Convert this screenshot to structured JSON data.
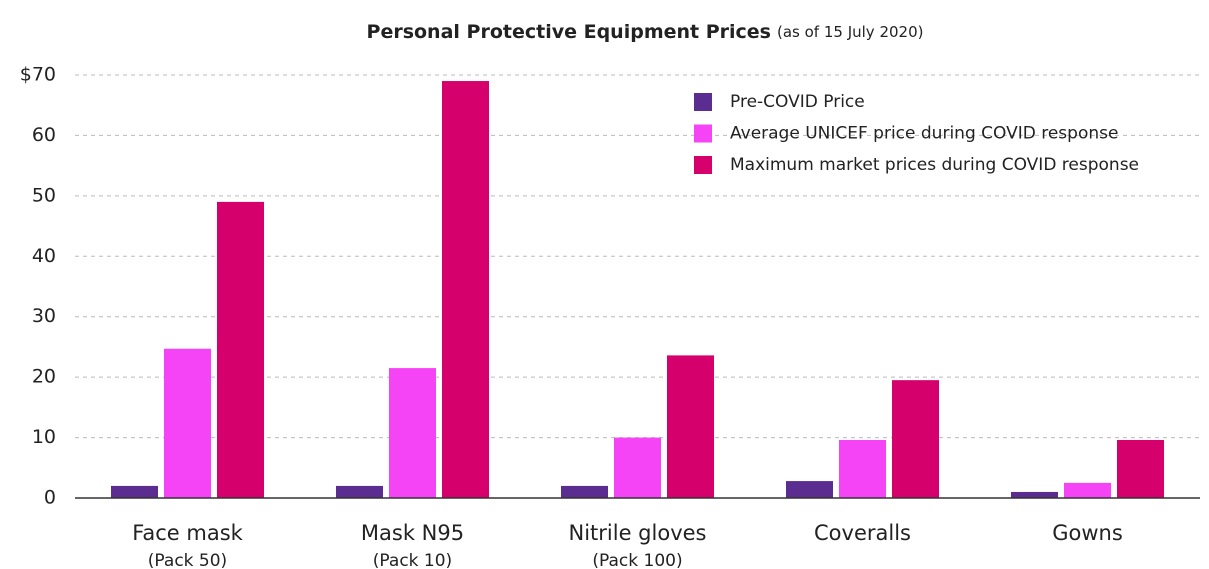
{
  "chart_data": {
    "type": "bar",
    "title": "Personal Protective Equipment Prices",
    "subtitle": "(as of 15 July 2020)",
    "categories": [
      "Face mask",
      "Mask N95",
      "Nitrile gloves",
      "Coveralls",
      "Gowns"
    ],
    "category_subtitles": [
      "(Pack 50)",
      "(Pack 10)",
      "(Pack 100)",
      null,
      null
    ],
    "series": [
      {
        "name": "Pre-COVID Price",
        "color": "#5c2d91",
        "values": [
          2,
          2,
          2,
          2.8,
          1
        ]
      },
      {
        "name": "Average UNICEF price during COVID response",
        "color": "#f544f5",
        "values": [
          24.7,
          21.5,
          10,
          9.6,
          2.5
        ]
      },
      {
        "name": "Maximum market prices during COVID response",
        "color": "#d6006c",
        "values": [
          49,
          69,
          23.6,
          19.5,
          9.6
        ]
      }
    ],
    "ylim": [
      0,
      70
    ],
    "yticks": [
      0,
      10,
      20,
      30,
      40,
      50,
      60,
      {
        "value": 70,
        "label": "$70"
      }
    ],
    "grid": true,
    "legend": "upper right"
  }
}
